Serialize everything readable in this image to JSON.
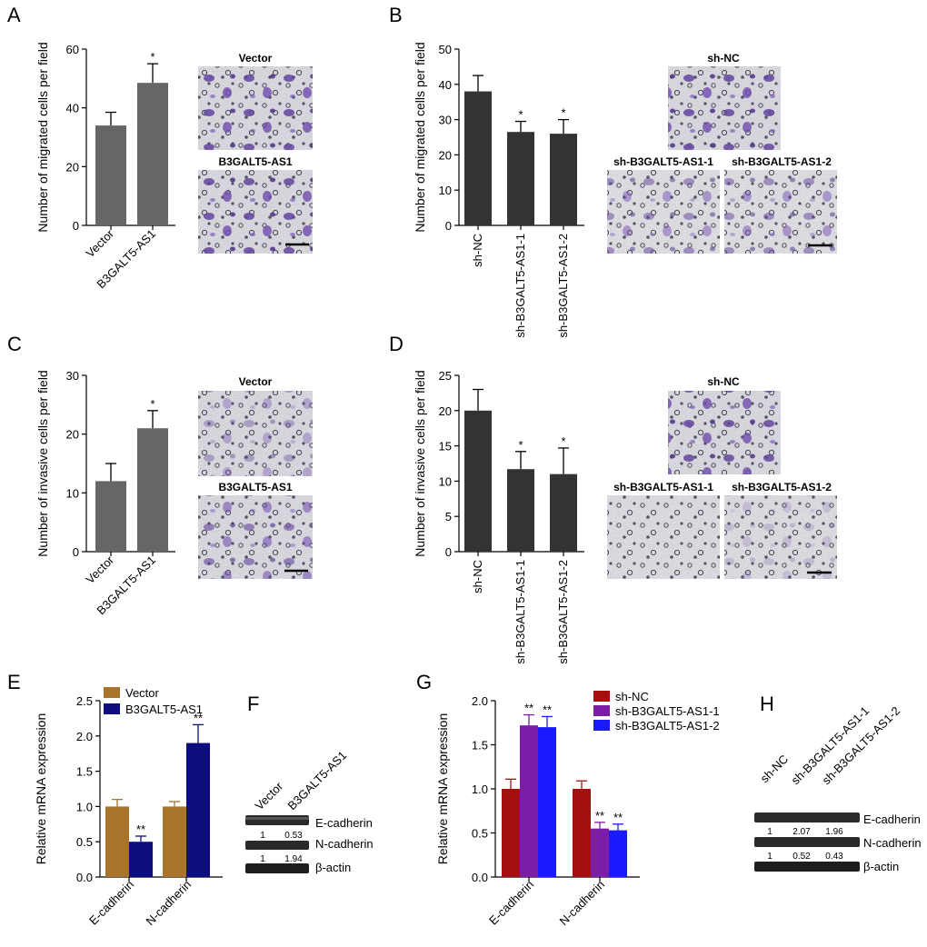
{
  "panel_labels": [
    "A",
    "B",
    "C",
    "D",
    "E",
    "F",
    "G",
    "H"
  ],
  "chart_data": [
    {
      "id": "A",
      "type": "bar",
      "title": "",
      "ylabel": "Number of migrated cells per field",
      "ylim": [
        0,
        60
      ],
      "yticks": [
        "0",
        "20",
        "40",
        "60"
      ],
      "categories": [
        "Vector",
        "B3GALT5-AS1"
      ],
      "values": [
        34,
        48.5
      ],
      "errors": [
        4.5,
        6.5
      ],
      "annotations": [
        "",
        "*"
      ],
      "color": "#666666"
    },
    {
      "id": "B",
      "type": "bar",
      "ylabel": "Number of migrated cells per field",
      "ylim": [
        0,
        50
      ],
      "yticks": [
        "0",
        "10",
        "20",
        "30",
        "40",
        "50"
      ],
      "categories": [
        "sh-NC",
        "sh-B3GALT5-AS1-1",
        "sh-B3GALT5-AS1-2"
      ],
      "values": [
        38,
        26.5,
        26
      ],
      "errors": [
        4.5,
        3,
        4
      ],
      "annotations": [
        "",
        "*",
        "*"
      ],
      "color": "#333333"
    },
    {
      "id": "C",
      "type": "bar",
      "ylabel": "Number of invasive cells per field",
      "ylim": [
        0,
        30
      ],
      "yticks": [
        "0",
        "10",
        "20",
        "30"
      ],
      "categories": [
        "Vector",
        "B3GALT5-AS1"
      ],
      "values": [
        12,
        21
      ],
      "errors": [
        3,
        3
      ],
      "annotations": [
        "",
        "*"
      ],
      "color": "#666666"
    },
    {
      "id": "D",
      "type": "bar",
      "ylabel": "Number of invasive cells per field",
      "ylim": [
        0,
        25
      ],
      "yticks": [
        "0",
        "5",
        "10",
        "15",
        "20",
        "25"
      ],
      "categories": [
        "sh-NC",
        "sh-B3GALT5-AS1-1",
        "sh-B3GALT5-AS1-2"
      ],
      "values": [
        20,
        11.7,
        11
      ],
      "errors": [
        3,
        2.5,
        3.7
      ],
      "annotations": [
        "",
        "*",
        "*"
      ],
      "color": "#333333"
    },
    {
      "id": "E",
      "type": "bar",
      "ylabel": "Relative mRNA expression",
      "ylim": [
        0,
        2.5
      ],
      "yticks": [
        "0.0",
        "0.5",
        "1.0",
        "1.5",
        "2.0",
        "2.5"
      ],
      "categories": [
        "E-cadherin",
        "N-cadherin"
      ],
      "series": [
        {
          "name": "Vector",
          "values": [
            1.0,
            1.0
          ],
          "errors": [
            0.1,
            0.07
          ],
          "color": "#A8742B",
          "annotations": [
            "",
            ""
          ]
        },
        {
          "name": "B3GALT5-AS1",
          "values": [
            0.5,
            1.9
          ],
          "errors": [
            0.08,
            0.26
          ],
          "color": "#0D0D80",
          "annotations": [
            "**",
            "**"
          ]
        }
      ]
    },
    {
      "id": "G",
      "type": "bar",
      "ylabel": "Relative mRNA expression",
      "ylim": [
        0,
        2.0
      ],
      "yticks": [
        "0.0",
        "0.5",
        "1.0",
        "1.5",
        "2.0"
      ],
      "categories": [
        "E-cadherin",
        "N-cadherin"
      ],
      "series": [
        {
          "name": "sh-NC",
          "values": [
            1.0,
            1.0
          ],
          "errors": [
            0.11,
            0.09
          ],
          "color": "#A50F0F",
          "annotations": [
            "",
            ""
          ]
        },
        {
          "name": "sh-B3GALT5-AS1-1",
          "values": [
            1.72,
            0.55
          ],
          "errors": [
            0.12,
            0.07
          ],
          "color": "#7A1EA8",
          "annotations": [
            "**",
            "**"
          ]
        },
        {
          "name": "sh-B3GALT5-AS1-2",
          "values": [
            1.7,
            0.53
          ],
          "errors": [
            0.12,
            0.07
          ],
          "color": "#1A1AFF",
          "annotations": [
            "**",
            "**"
          ]
        }
      ]
    }
  ],
  "micro": {
    "A": {
      "top": "Vector",
      "bottom": "B3GALT5-AS1"
    },
    "B": {
      "top": "sh-NC",
      "bl": "sh-B3GALT5-AS1-1",
      "br": "sh-B3GALT5-AS1-2"
    },
    "C": {
      "top": "Vector",
      "bottom": "B3GALT5-AS1"
    },
    "D": {
      "top": "sh-NC",
      "bl": "sh-B3GALT5-AS1-1",
      "br": "sh-B3GALT5-AS1-2"
    }
  },
  "blotF": {
    "lanes": [
      "Vector",
      "B3GALT5-AS1"
    ],
    "bands": [
      "E-cadherin",
      "N-cadherin",
      "β-actin"
    ],
    "ecad": [
      "1",
      "0.53"
    ],
    "ncad": [
      "1",
      "1.94"
    ]
  },
  "blotH": {
    "lanes": [
      "sh-NC",
      "sh-B3GALT5-AS1-1",
      "sh-B3GALT5-AS1-2"
    ],
    "bands": [
      "E-cadherin",
      "N-cadherin",
      "β-actin"
    ],
    "ecad": [
      "1",
      "2.07",
      "1.96"
    ],
    "ncad": [
      "1",
      "0.52",
      "0.43"
    ]
  }
}
